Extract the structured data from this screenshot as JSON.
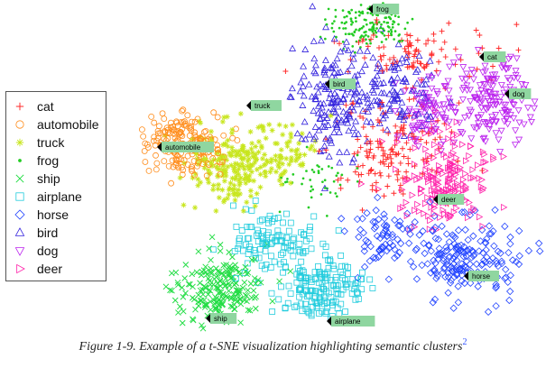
{
  "chart_data": {
    "type": "scatter",
    "title": "",
    "xlabel": "",
    "ylabel": "",
    "grid": false,
    "legend_position": "left",
    "series": [
      {
        "name": "cat",
        "marker": "plus",
        "color": "#ff2a2a"
      },
      {
        "name": "automobile",
        "marker": "circle",
        "color": "#ff8c1a"
      },
      {
        "name": "truck",
        "marker": "star",
        "color": "#c8e61e"
      },
      {
        "name": "frog",
        "marker": "dot",
        "color": "#22cc22"
      },
      {
        "name": "ship",
        "marker": "x",
        "color": "#22dd44"
      },
      {
        "name": "airplane",
        "marker": "square",
        "color": "#22ccdd"
      },
      {
        "name": "horse",
        "marker": "diamond",
        "color": "#2244ff"
      },
      {
        "name": "bird",
        "marker": "triangle-up",
        "color": "#3322dd"
      },
      {
        "name": "dog",
        "marker": "triangle-down",
        "color": "#bb22ee"
      },
      {
        "name": "deer",
        "marker": "triangle-right",
        "color": "#ff22aa"
      }
    ],
    "annotations": [
      {
        "label": "frog",
        "x": 408,
        "y": 10
      },
      {
        "label": "cat",
        "x": 531,
        "y": 63
      },
      {
        "label": "bird",
        "x": 360,
        "y": 93
      },
      {
        "label": "dog",
        "x": 559,
        "y": 104
      },
      {
        "label": "truck",
        "x": 273,
        "y": 117
      },
      {
        "label": "automobile",
        "x": 174,
        "y": 163
      },
      {
        "label": "deer",
        "x": 480,
        "y": 221
      },
      {
        "label": "horse",
        "x": 514,
        "y": 306
      },
      {
        "label": "ship",
        "x": 228,
        "y": 353
      },
      {
        "label": "airplane",
        "x": 362,
        "y": 356
      }
    ],
    "clusters": [
      {
        "series": "frog",
        "cx": 408,
        "cy": 28,
        "rx": 42,
        "ry": 22,
        "n": 150
      },
      {
        "series": "cat",
        "cx": 460,
        "cy": 60,
        "rx": 75,
        "ry": 30,
        "n": 90
      },
      {
        "series": "bird",
        "cx": 370,
        "cy": 110,
        "rx": 42,
        "ry": 55,
        "n": 170
      },
      {
        "series": "bird",
        "cx": 440,
        "cy": 100,
        "rx": 45,
        "ry": 38,
        "n": 110
      },
      {
        "series": "cat",
        "cx": 430,
        "cy": 165,
        "rx": 60,
        "ry": 55,
        "n": 150
      },
      {
        "series": "dog",
        "cx": 540,
        "cy": 110,
        "rx": 40,
        "ry": 45,
        "n": 170
      },
      {
        "series": "dog",
        "cx": 475,
        "cy": 120,
        "rx": 30,
        "ry": 40,
        "n": 80
      },
      {
        "series": "deer",
        "cx": 493,
        "cy": 200,
        "rx": 45,
        "ry": 45,
        "n": 190
      },
      {
        "series": "horse",
        "cx": 515,
        "cy": 285,
        "rx": 55,
        "ry": 38,
        "n": 200
      },
      {
        "series": "horse",
        "cx": 425,
        "cy": 260,
        "rx": 35,
        "ry": 35,
        "n": 70
      },
      {
        "series": "automobile",
        "cx": 200,
        "cy": 160,
        "rx": 40,
        "ry": 30,
        "n": 200
      },
      {
        "series": "truck",
        "cx": 260,
        "cy": 185,
        "rx": 42,
        "ry": 42,
        "n": 200
      },
      {
        "series": "truck",
        "cx": 320,
        "cy": 170,
        "rx": 30,
        "ry": 35,
        "n": 60
      },
      {
        "series": "airplane",
        "cx": 300,
        "cy": 270,
        "rx": 50,
        "ry": 32,
        "n": 110
      },
      {
        "series": "airplane",
        "cx": 355,
        "cy": 320,
        "rx": 40,
        "ry": 30,
        "n": 160
      },
      {
        "series": "ship",
        "cx": 240,
        "cy": 320,
        "rx": 45,
        "ry": 35,
        "n": 200
      },
      {
        "series": "frog",
        "cx": 350,
        "cy": 200,
        "rx": 35,
        "ry": 30,
        "n": 45
      }
    ]
  },
  "caption": {
    "text": "Figure 1-9. Example of a t-SNE visualization highlighting semantic clusters",
    "footnote": "2"
  }
}
